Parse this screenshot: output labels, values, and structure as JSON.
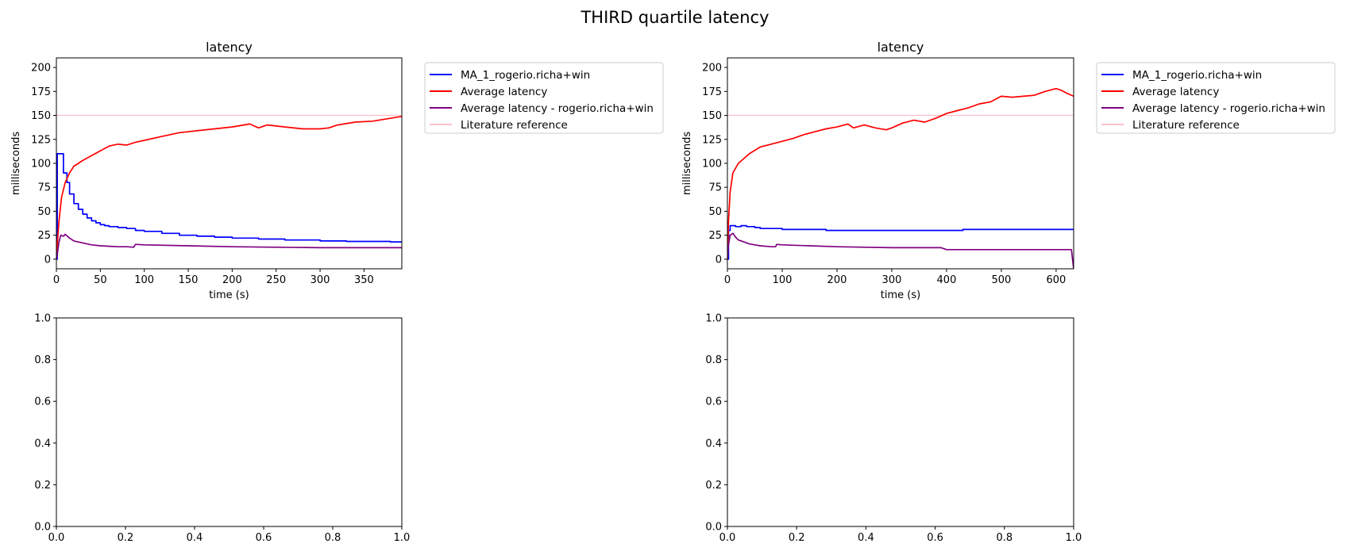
{
  "figure": {
    "suptitle": "THIRD quartile latency"
  },
  "chart_data": [
    {
      "type": "line",
      "title": "latency",
      "xlabel": "time (s)",
      "ylabel": "milliseconds",
      "xlim": [
        0,
        393
      ],
      "ylim": [
        -10,
        210
      ],
      "xticks": [
        0,
        50,
        100,
        150,
        200,
        250,
        300,
        350
      ],
      "yticks": [
        0,
        25,
        50,
        75,
        100,
        125,
        150,
        175,
        200
      ],
      "legend_position": "outside-right",
      "series": [
        {
          "name": "MA_1_rogerio.richa+win",
          "color": "#0000ff",
          "step": true,
          "x": [
            0,
            1,
            3,
            5,
            8,
            12,
            15,
            20,
            25,
            30,
            35,
            40,
            45,
            50,
            55,
            60,
            70,
            80,
            90,
            100,
            120,
            140,
            160,
            180,
            200,
            230,
            260,
            300,
            330,
            360,
            380,
            393
          ],
          "y": [
            0,
            110,
            110,
            110,
            90,
            80,
            68,
            58,
            52,
            47,
            43,
            40,
            38,
            36,
            35,
            34,
            33,
            32,
            30,
            29,
            27,
            25,
            24,
            23,
            22,
            21,
            20,
            19,
            18.5,
            18.5,
            18,
            18
          ]
        },
        {
          "name": "Average latency",
          "color": "#ff0000",
          "step": false,
          "x": [
            0,
            1,
            3,
            6,
            10,
            15,
            20,
            30,
            40,
            50,
            60,
            70,
            80,
            90,
            100,
            120,
            140,
            160,
            180,
            200,
            220,
            230,
            240,
            260,
            280,
            300,
            310,
            320,
            340,
            360,
            380,
            393
          ],
          "y": [
            0,
            15,
            40,
            65,
            80,
            90,
            97,
            103,
            108,
            113,
            118,
            120,
            119,
            122,
            124,
            128,
            132,
            134,
            136,
            138,
            141,
            137,
            140,
            138,
            136,
            136,
            137,
            140,
            143,
            144,
            147,
            149
          ]
        },
        {
          "name": "Average latency - rogerio.richa+win",
          "color": "#800080",
          "step": false,
          "x": [
            0,
            1,
            3,
            5,
            8,
            10,
            15,
            20,
            30,
            40,
            50,
            60,
            70,
            80,
            88,
            90,
            100,
            150,
            200,
            250,
            300,
            350,
            393
          ],
          "y": [
            0,
            5,
            18,
            25,
            24,
            26,
            22,
            19,
            17,
            15,
            14,
            13.5,
            13,
            13,
            12.5,
            15.5,
            15,
            14,
            13,
            12.5,
            12,
            12,
            12
          ]
        },
        {
          "name": "Literature reference",
          "color": "#ffc0cb",
          "step": false,
          "x": [
            0,
            393
          ],
          "y": [
            150,
            150
          ]
        }
      ]
    },
    {
      "type": "line",
      "title": "latency",
      "xlabel": "time (s)",
      "ylabel": "milliseconds",
      "xlim": [
        0,
        632
      ],
      "ylim": [
        -10,
        210
      ],
      "xticks": [
        0,
        100,
        200,
        300,
        400,
        500,
        600
      ],
      "yticks": [
        0,
        25,
        50,
        75,
        100,
        125,
        150,
        175,
        200
      ],
      "legend_position": "outside-right",
      "series": [
        {
          "name": "MA_1_rogerio.richa+win",
          "color": "#0000ff",
          "step": true,
          "x": [
            0,
            2,
            5,
            15,
            25,
            35,
            50,
            60,
            80,
            100,
            180,
            200,
            420,
            430,
            632
          ],
          "y": [
            0,
            30,
            35,
            34,
            35,
            34,
            33,
            32,
            32,
            31,
            30,
            30,
            30,
            31,
            31
          ]
        },
        {
          "name": "Average latency",
          "color": "#ff0000",
          "step": false,
          "x": [
            0,
            2,
            5,
            10,
            20,
            30,
            40,
            60,
            80,
            100,
            120,
            140,
            160,
            180,
            200,
            220,
            230,
            250,
            270,
            290,
            300,
            320,
            340,
            360,
            380,
            400,
            420,
            440,
            460,
            480,
            500,
            520,
            540,
            560,
            580,
            600,
            610,
            620,
            632
          ],
          "y": [
            0,
            40,
            70,
            90,
            100,
            105,
            110,
            117,
            120,
            123,
            126,
            130,
            133,
            136,
            138,
            141,
            137,
            140,
            137,
            135,
            137,
            142,
            145,
            143,
            147,
            152,
            155,
            158,
            162,
            164,
            170,
            169,
            170,
            171,
            175,
            178,
            176,
            173,
            170
          ]
        },
        {
          "name": "Average latency - rogerio.richa+win",
          "color": "#800080",
          "step": false,
          "x": [
            0,
            2,
            5,
            10,
            15,
            20,
            30,
            40,
            50,
            60,
            80,
            88,
            90,
            100,
            150,
            200,
            250,
            300,
            350,
            390,
            400,
            450,
            500,
            550,
            600,
            628,
            632
          ],
          "y": [
            0,
            15,
            25,
            27,
            23,
            20,
            18,
            16,
            15,
            14,
            13,
            13,
            15.5,
            15,
            14,
            13,
            12.5,
            12,
            12,
            12,
            10,
            10,
            10,
            10,
            10,
            10,
            -10
          ]
        },
        {
          "name": "Literature reference",
          "color": "#ffc0cb",
          "step": false,
          "x": [
            0,
            632
          ],
          "y": [
            150,
            150
          ]
        }
      ]
    },
    {
      "type": "line",
      "title": "",
      "xlabel": "",
      "ylabel": "",
      "xlim": [
        0,
        1
      ],
      "ylim": [
        0,
        1
      ],
      "xticks": [
        0.0,
        0.2,
        0.4,
        0.6,
        0.8,
        1.0
      ],
      "yticks": [
        0.0,
        0.2,
        0.4,
        0.6,
        0.8,
        1.0
      ],
      "series": []
    },
    {
      "type": "line",
      "title": "",
      "xlabel": "",
      "ylabel": "",
      "xlim": [
        0,
        1
      ],
      "ylim": [
        0,
        1
      ],
      "xticks": [
        0.0,
        0.2,
        0.4,
        0.6,
        0.8,
        1.0
      ],
      "yticks": [
        0.0,
        0.2,
        0.4,
        0.6,
        0.8,
        1.0
      ],
      "series": []
    }
  ]
}
